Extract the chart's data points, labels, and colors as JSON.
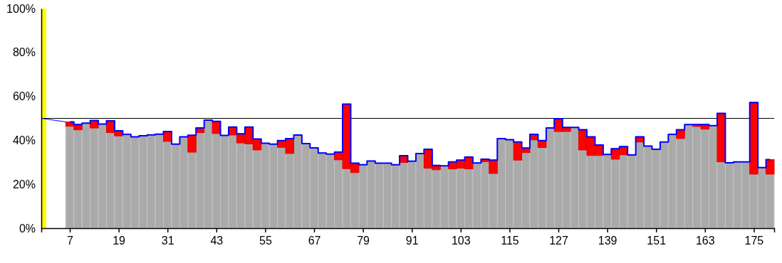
{
  "chart_data": {
    "type": "bar",
    "stacked": true,
    "xlim": [
      0,
      180
    ],
    "ylim": [
      0,
      100
    ],
    "xticks": [
      7,
      19,
      31,
      43,
      55,
      67,
      79,
      91,
      103,
      115,
      127,
      139,
      151,
      163,
      175
    ],
    "yticks": [
      {
        "value": 0,
        "label": "0%"
      },
      {
        "value": 20,
        "label": "20%"
      },
      {
        "value": 40,
        "label": "40%"
      },
      {
        "value": 60,
        "label": "60%"
      },
      {
        "value": 80,
        "label": "80%"
      },
      {
        "value": 100,
        "label": "100%"
      }
    ],
    "x": [
      7,
      9,
      11,
      13,
      15,
      17,
      19,
      21,
      23,
      25,
      27,
      29,
      31,
      33,
      35,
      37,
      39,
      41,
      43,
      45,
      47,
      49,
      51,
      53,
      55,
      57,
      59,
      61,
      63,
      65,
      67,
      69,
      71,
      73,
      75,
      77,
      79,
      81,
      83,
      85,
      87,
      89,
      91,
      93,
      95,
      97,
      99,
      101,
      103,
      105,
      107,
      109,
      111,
      113,
      115,
      117,
      119,
      121,
      123,
      125,
      127,
      129,
      131,
      133,
      135,
      137,
      139,
      141,
      143,
      145,
      147,
      149,
      151,
      153,
      155,
      157,
      159,
      161,
      163,
      165,
      167,
      169,
      171,
      173,
      175,
      177,
      179
    ],
    "ref_lines": [
      {
        "axis": "y",
        "value": 50,
        "color": "#000000"
      }
    ],
    "bands": [
      {
        "axis": "x",
        "from": 0,
        "to": 1.2,
        "color": "#ffff00"
      }
    ],
    "series": [
      {
        "color": "#aaaaaa",
        "values": [
          46.4,
          44.8,
          47.8,
          45.6,
          47.4,
          43.5,
          42.0,
          42.7,
          41.6,
          42.1,
          42.5,
          42.8,
          39.5,
          38.3,
          41.6,
          34.6,
          43.5,
          49.2,
          43.1,
          42.2,
          42.4,
          38.8,
          38.4,
          35.6,
          38.7,
          38.3,
          36.8,
          34.0,
          42.4,
          38.5,
          36.6,
          34.2,
          33.7,
          31.1,
          27.1,
          25.3,
          28.9,
          30.6,
          29.6,
          29.6,
          28.9,
          29.9,
          30.5,
          34.0,
          27.3,
          26.6,
          28.4,
          27.0,
          27.3,
          27.0,
          29.7,
          30.3,
          24.9,
          40.8,
          40.3,
          31.0,
          34.4,
          40.2,
          36.7,
          45.6,
          44.0,
          44.0,
          45.9,
          35.6,
          33.1,
          33.1,
          33.6,
          31.4,
          33.4,
          33.3,
          39.2,
          37.4,
          35.9,
          39.2,
          42.7,
          40.8,
          47.2,
          46.3,
          45.1,
          46.7,
          30.2,
          29.8,
          30.2,
          30.2,
          24.6,
          27.6,
          24.6
        ]
      },
      {
        "color": "#ff0000",
        "values": [
          2.0,
          2.4,
          null,
          3.4,
          null,
          5.4,
          2.3,
          null,
          null,
          null,
          null,
          null,
          4.5,
          null,
          null,
          7.7,
          2.1,
          null,
          5.5,
          null,
          3.6,
          4.2,
          7.6,
          5.0,
          null,
          null,
          3.1,
          6.8,
          null,
          null,
          null,
          null,
          null,
          3.5,
          29.4,
          4.3,
          null,
          null,
          null,
          null,
          null,
          3.1,
          null,
          null,
          8.6,
          2.0,
          null,
          3.2,
          3.7,
          5.4,
          null,
          1.1,
          6.1,
          null,
          null,
          8.2,
          2.1,
          2.5,
          3.2,
          null,
          5.8,
          1.9,
          null,
          9.2,
          8.5,
          4.8,
          null,
          4.8,
          3.7,
          null,
          2.4,
          null,
          null,
          null,
          null,
          4.0,
          null,
          0.9,
          2.1,
          null,
          22.1,
          null,
          null,
          null,
          32.6,
          null,
          6.6
        ]
      },
      {
        "type": "step",
        "color": "#0000ff",
        "values": [
          48.4,
          47.2,
          47.8,
          49.0,
          47.4,
          48.9,
          44.3,
          42.7,
          41.6,
          42.1,
          42.5,
          42.8,
          44.0,
          38.3,
          41.6,
          42.3,
          45.6,
          49.2,
          48.6,
          42.2,
          46.0,
          43.0,
          46.0,
          40.6,
          38.7,
          38.3,
          39.9,
          40.8,
          42.4,
          38.5,
          36.6,
          34.2,
          33.7,
          34.6,
          56.5,
          29.6,
          28.9,
          30.6,
          29.6,
          29.6,
          28.9,
          33.0,
          30.5,
          34.0,
          35.9,
          28.6,
          28.4,
          30.2,
          31.0,
          32.4,
          29.7,
          31.4,
          31.0,
          40.8,
          40.3,
          39.2,
          36.5,
          42.7,
          39.9,
          45.6,
          49.8,
          45.9,
          45.9,
          44.8,
          41.6,
          37.9,
          33.6,
          36.2,
          37.1,
          33.3,
          41.6,
          37.4,
          35.9,
          39.2,
          42.7,
          44.8,
          47.2,
          47.2,
          47.2,
          46.7,
          52.3,
          29.8,
          30.2,
          30.2,
          57.2,
          27.6,
          31.2
        ]
      },
      {
        "type": "line",
        "color": "#0000ff",
        "x": [
          0,
          6
        ],
        "values": [
          50,
          48.4
        ]
      }
    ]
  }
}
